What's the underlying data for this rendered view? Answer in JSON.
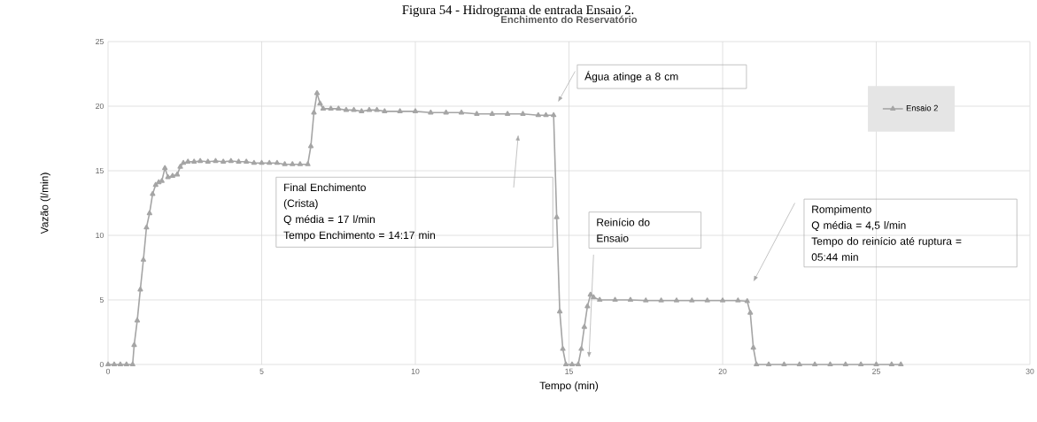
{
  "chart_data": {
    "type": "line",
    "title": "Enchimento do Reservatório",
    "xlabel": "Tempo (min)",
    "ylabel": "Vazão (l/min)",
    "annotations": [
      "Figura 54 - Hidrograma de entrada Ensaio 2.",
      "Água atinge a 8 cm",
      "Final Enchimento\n(Crista)\nQ média = 17 l/min\nTempo Enchimento = 14:17 min",
      "Reinício do\nEnsaio",
      "Rompimento\nQ média = 4,5 l/min\nTempo do reinício até ruptura =\n05:44 min"
    ],
    "series": [
      {
        "name": "Ensaio 2",
        "color": "#a5a5a5",
        "x": [
          0,
          0.2,
          0.4,
          0.6,
          0.8,
          0.85,
          0.95,
          1.05,
          1.15,
          1.25,
          1.35,
          1.45,
          1.55,
          1.65,
          1.75,
          1.85,
          1.95,
          2.1,
          2.25,
          2.35,
          2.45,
          2.6,
          2.8,
          3.0,
          3.25,
          3.5,
          3.75,
          4.0,
          4.25,
          4.5,
          4.75,
          5.0,
          5.25,
          5.5,
          5.75,
          6.0,
          6.25,
          6.5,
          6.6,
          6.7,
          6.8,
          6.9,
          7.0,
          7.25,
          7.5,
          7.75,
          8.0,
          8.25,
          8.5,
          8.75,
          9.0,
          9.5,
          10.0,
          10.5,
          11.0,
          11.5,
          12.0,
          12.5,
          13.0,
          13.5,
          14.0,
          14.25,
          14.5,
          14.6,
          14.7,
          14.8,
          14.9,
          15.1,
          15.3,
          15.4,
          15.5,
          15.6,
          15.7,
          15.8,
          16.0,
          16.5,
          17.0,
          17.5,
          18.0,
          18.5,
          19.0,
          19.5,
          20.0,
          20.5,
          20.8,
          20.9,
          21.0,
          21.1,
          21.5,
          22.0,
          22.5,
          23.0,
          23.5,
          24.0,
          24.5,
          25.0,
          25.5,
          25.8
        ],
        "values": [
          0,
          0,
          0,
          0,
          0,
          1.5,
          3.4,
          5.8,
          8.1,
          10.6,
          11.7,
          13.2,
          13.9,
          14.1,
          14.2,
          15.2,
          14.5,
          14.6,
          14.7,
          15.3,
          15.6,
          15.7,
          15.7,
          15.75,
          15.7,
          15.75,
          15.7,
          15.75,
          15.7,
          15.7,
          15.6,
          15.6,
          15.6,
          15.6,
          15.5,
          15.5,
          15.5,
          15.5,
          16.9,
          19.5,
          21.0,
          20.2,
          19.8,
          19.8,
          19.8,
          19.7,
          19.7,
          19.6,
          19.7,
          19.7,
          19.6,
          19.6,
          19.6,
          19.5,
          19.5,
          19.5,
          19.4,
          19.4,
          19.4,
          19.4,
          19.3,
          19.3,
          19.3,
          11.4,
          4.1,
          1.2,
          0,
          0,
          0,
          1.2,
          2.9,
          4.5,
          5.4,
          5.2,
          5.0,
          5.0,
          5.0,
          4.95,
          4.95,
          4.95,
          4.95,
          4.95,
          4.95,
          4.95,
          4.9,
          4.0,
          1.3,
          0,
          0,
          0,
          0,
          0,
          0,
          0,
          0,
          0,
          0,
          0
        ]
      }
    ],
    "xlim": [
      0,
      30
    ],
    "xticks": [
      0,
      5,
      10,
      15,
      20,
      25,
      30
    ],
    "ylim": [
      0,
      25
    ],
    "yticks": [
      0,
      5,
      10,
      15,
      20,
      25
    ],
    "grid": true,
    "legend": "top right",
    "marker": "triangle",
    "line_style": "solid"
  }
}
